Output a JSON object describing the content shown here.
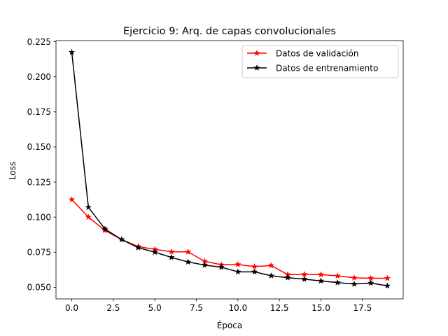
{
  "chart_data": {
    "type": "line",
    "title": "Ejercicio 9: Arq. de capas convolucionales",
    "xlabel": "Época",
    "ylabel": "Loss",
    "xlim": [
      -0.95,
      19.95
    ],
    "ylim": [
      0.0417,
      0.2258
    ],
    "xticks": [
      0,
      2.5,
      5,
      7.5,
      10,
      12.5,
      15,
      17.5
    ],
    "xtick_labels": [
      "0.0",
      "2.5",
      "5.0",
      "7.5",
      "10.0",
      "12.5",
      "15.0",
      "17.5"
    ],
    "yticks": [
      0.05,
      0.075,
      0.1,
      0.125,
      0.15,
      0.175,
      0.2,
      0.225
    ],
    "ytick_labels": [
      "0.050",
      "0.075",
      "0.100",
      "0.125",
      "0.150",
      "0.175",
      "0.200",
      "0.225"
    ],
    "grid": false,
    "legend_position": "top-right",
    "x": [
      0,
      1,
      2,
      3,
      4,
      5,
      6,
      7,
      8,
      9,
      10,
      11,
      12,
      13,
      14,
      15,
      16,
      17,
      18,
      19
    ],
    "series": [
      {
        "name": "Datos de validación",
        "color": "#ff0000",
        "marker": "star",
        "values": [
          0.1125,
          0.1,
          0.0905,
          0.084,
          0.079,
          0.077,
          0.0753,
          0.0752,
          0.0685,
          0.066,
          0.0662,
          0.0647,
          0.0655,
          0.059,
          0.0592,
          0.059,
          0.0581,
          0.0567,
          0.0564,
          0.0564
        ]
      },
      {
        "name": "Datos de entrenamiento",
        "color": "#000000",
        "marker": "star",
        "values": [
          0.2175,
          0.107,
          0.0915,
          0.084,
          0.0782,
          0.075,
          0.0713,
          0.068,
          0.0658,
          0.0643,
          0.061,
          0.061,
          0.0582,
          0.0568,
          0.0558,
          0.0545,
          0.0533,
          0.0523,
          0.053,
          0.051
        ]
      }
    ]
  }
}
